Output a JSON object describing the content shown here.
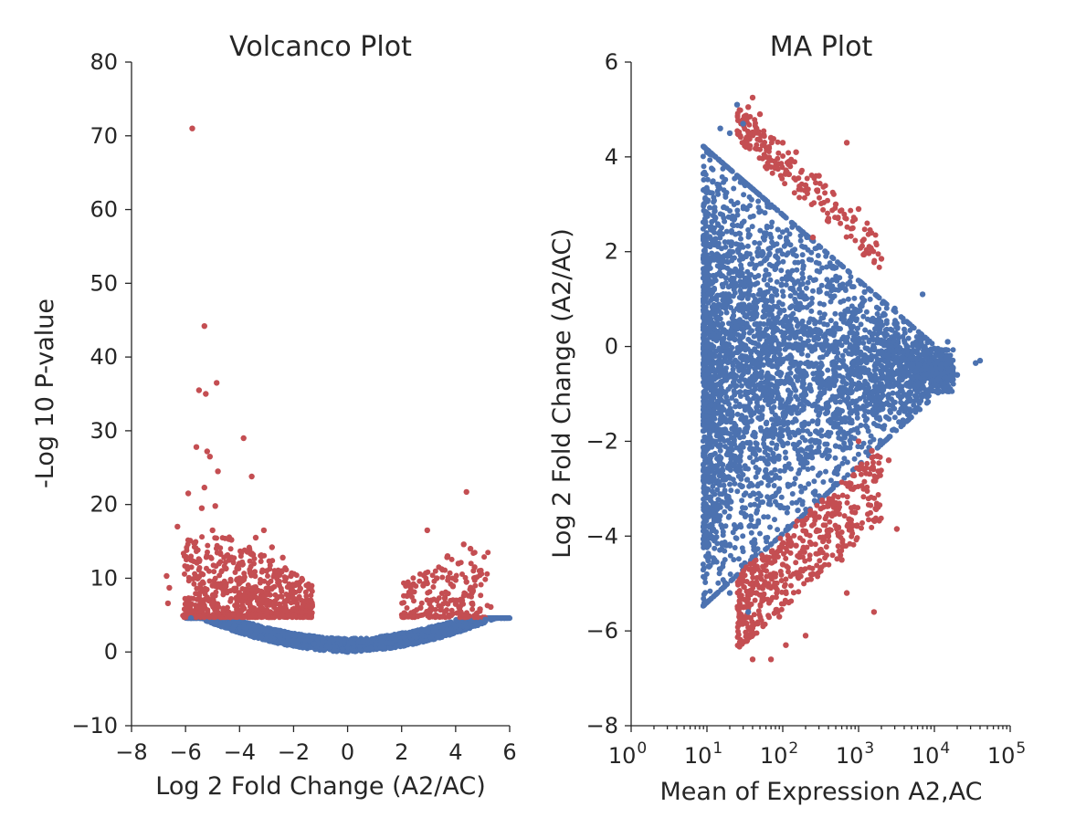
{
  "colors": {
    "significant": "#C44E52",
    "nonsignificant": "#4C72B0",
    "axis": "#262626"
  },
  "chart_data": [
    {
      "type": "scatter",
      "title": "Volcanco Plot",
      "xlabel": "Log 2 Fold Change (A2/AC)",
      "ylabel": "-Log 10 P-value",
      "xlim": [
        -8,
        6
      ],
      "ylim": [
        -10,
        80
      ],
      "xticks": [
        -8,
        -6,
        -4,
        -2,
        0,
        2,
        4,
        6
      ],
      "xtick_labels": [
        "−8",
        "−6",
        "−4",
        "−2",
        "0",
        "2",
        "4",
        "6"
      ],
      "yticks": [
        -10,
        0,
        10,
        20,
        30,
        40,
        50,
        60,
        70,
        80
      ],
      "ytick_labels": [
        "−10",
        "0",
        "10",
        "20",
        "30",
        "40",
        "50",
        "60",
        "70",
        "80"
      ],
      "grid": false,
      "legend": "none",
      "series": [
        {
          "color": "#C44E52",
          "points": [
            [
              -5.75,
              71
            ],
            [
              -5.3,
              44.2
            ],
            [
              -4.85,
              36.5
            ],
            [
              -5.5,
              35.5
            ],
            [
              -5.25,
              35.0
            ],
            [
              -3.85,
              29.0
            ],
            [
              -5.2,
              27.2
            ],
            [
              -5.6,
              27.8
            ],
            [
              -5.1,
              26.5
            ],
            [
              -4.8,
              24.5
            ],
            [
              -3.55,
              23.8
            ],
            [
              -5.3,
              22.3
            ],
            [
              -5.9,
              21.5
            ],
            [
              -4.9,
              19.8
            ],
            [
              -5.4,
              19.5
            ],
            [
              -6.3,
              17.0
            ],
            [
              -3.1,
              16.5
            ],
            [
              -3.4,
              15.5
            ],
            [
              -4.3,
              15.2
            ],
            [
              -5.0,
              16.5
            ],
            [
              -2.8,
              14.2
            ],
            [
              -3.5,
              13.2
            ],
            [
              -2.4,
              12.8
            ],
            [
              -6.7,
              10.3
            ],
            [
              -6.6,
              8.7
            ],
            [
              -6.65,
              6.6
            ],
            [
              -5.8,
              12.5
            ],
            [
              -5.5,
              10.2
            ],
            [
              -4.5,
              11.3
            ],
            [
              -3.0,
              11.0
            ],
            [
              -2.1,
              10.3
            ],
            [
              -1.75,
              8.6
            ],
            [
              -1.55,
              6.9
            ],
            [
              -1.4,
              5.4
            ],
            [
              -4.2,
              8.6
            ],
            [
              -5.2,
              7.4
            ],
            [
              -3.7,
              6.7
            ],
            [
              -2.7,
              6.4
            ],
            [
              -5.95,
              5.6
            ],
            [
              -4.6,
              5.9
            ],
            [
              -3.2,
              8.2
            ],
            [
              -2.3,
              5.6
            ],
            [
              -4.0,
              10.0
            ],
            [
              -5.0,
              9.0
            ],
            [
              -3.8,
              7.5
            ],
            [
              4.4,
              21.7
            ],
            [
              2.95,
              16.5
            ],
            [
              4.3,
              14.6
            ],
            [
              4.55,
              14.0
            ],
            [
              3.7,
              13.0
            ],
            [
              4.1,
              12.0
            ],
            [
              4.7,
              11.5
            ],
            [
              3.3,
              10.0
            ],
            [
              2.8,
              9.0
            ],
            [
              3.9,
              8.9
            ],
            [
              4.6,
              8.0
            ],
            [
              2.2,
              7.6
            ],
            [
              3.6,
              7.3
            ],
            [
              5.3,
              6.1
            ],
            [
              4.9,
              5.8
            ],
            [
              2.7,
              6.0
            ],
            [
              4.0,
              6.5
            ],
            [
              4.4,
              9.5
            ],
            [
              3.1,
              7.0
            ],
            [
              4.2,
              5.3
            ]
          ]
        },
        {
          "color": "#4C72B0",
          "points": [
            [
              0,
              0
            ],
            [
              -2,
              1.5
            ],
            [
              -5.8,
              4.6
            ],
            [
              2,
              1.2
            ],
            [
              5.1,
              4.4
            ]
          ]
        }
      ]
    },
    {
      "type": "scatter",
      "title": "MA Plot",
      "xlabel": "Mean of Expression A2,AC",
      "ylabel": "Log 2 Fold Change (A2/AC)",
      "xscale": "log",
      "xlim": [
        1,
        100000
      ],
      "ylim": [
        -8,
        6
      ],
      "xtick_labels": [
        {
          "base": "10",
          "exp": "0"
        },
        {
          "base": "10",
          "exp": "1"
        },
        {
          "base": "10",
          "exp": "2"
        },
        {
          "base": "10",
          "exp": "3"
        },
        {
          "base": "10",
          "exp": "4"
        },
        {
          "base": "10",
          "exp": "5"
        }
      ],
      "yticks": [
        -8,
        -6,
        -4,
        -2,
        0,
        2,
        4,
        6
      ],
      "ytick_labels": [
        "−8",
        "−6",
        "−4",
        "−2",
        "0",
        "2",
        "4",
        "6"
      ],
      "grid": false,
      "legend": "none",
      "series": [
        {
          "color": "#C44E52",
          "points": [
            [
              40,
              5.25
            ],
            [
              35,
              5.05
            ],
            [
              50,
              4.9
            ],
            [
              70,
              4.4
            ],
            [
              100,
              4.3
            ],
            [
              150,
              4.1
            ],
            [
              700,
              4.3
            ],
            [
              300,
              3.6
            ],
            [
              200,
              3.4
            ],
            [
              500,
              3.0
            ],
            [
              1000,
              2.9
            ],
            [
              60,
              4.0
            ],
            [
              80,
              3.8
            ],
            [
              120,
              3.9
            ],
            [
              45,
              4.6
            ],
            [
              2000,
              1.85
            ],
            [
              400,
              2.7
            ],
            [
              250,
              2.3
            ],
            [
              1500,
              -2.2
            ],
            [
              2500,
              -2.4
            ],
            [
              1200,
              -2.6
            ],
            [
              800,
              -3.0
            ],
            [
              500,
              -3.3
            ],
            [
              3200,
              -3.85
            ],
            [
              300,
              -3.6
            ],
            [
              200,
              -3.9
            ],
            [
              150,
              -4.2
            ],
            [
              100,
              -4.6
            ],
            [
              80,
              -4.8
            ],
            [
              60,
              -5.0
            ],
            [
              45,
              -5.2
            ],
            [
              30,
              -5.5
            ],
            [
              700,
              -5.2
            ],
            [
              1600,
              -5.6
            ],
            [
              40,
              -6.6
            ],
            [
              70,
              -6.6
            ],
            [
              110,
              -6.3
            ],
            [
              200,
              -6.1
            ],
            [
              90,
              -5.7
            ],
            [
              120,
              -5.4
            ],
            [
              600,
              -4.5
            ],
            [
              400,
              -4.0
            ],
            [
              1000,
              -2.0
            ],
            [
              900,
              -3.5
            ],
            [
              250,
              -4.8
            ]
          ]
        },
        {
          "color": "#4C72B0",
          "points": [
            [
              10,
              4.1
            ],
            [
              15,
              4.6
            ],
            [
              20,
              4.5
            ],
            [
              25,
              5.1
            ],
            [
              30,
              4.7
            ],
            [
              10,
              0
            ],
            [
              10,
              -2.8
            ],
            [
              15,
              -4.7
            ],
            [
              20,
              -5.2
            ],
            [
              35,
              -5.6
            ],
            [
              40000,
              -0.3
            ],
            [
              35000,
              -0.35
            ],
            [
              20000,
              -0.6
            ],
            [
              15000,
              0.1
            ],
            [
              7000,
              1.1
            ],
            [
              3000,
              0.8
            ],
            [
              1200,
              1.15
            ],
            [
              1000,
              -1.3
            ],
            [
              500,
              -2.1
            ]
          ]
        }
      ]
    }
  ]
}
